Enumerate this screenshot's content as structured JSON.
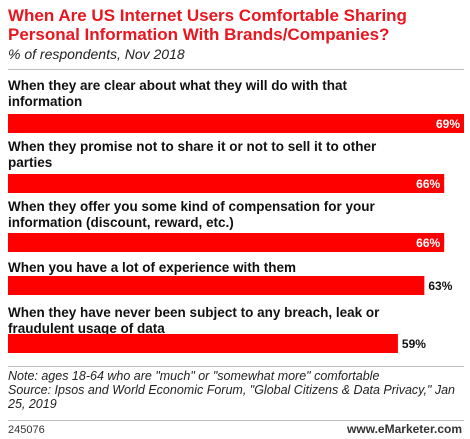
{
  "chart_data": {
    "type": "bar",
    "title": "When Are US Internet Users Comfortable Sharing Personal Information With Brands/Companies?",
    "subtitle": "% of respondents, Nov 2018",
    "categories": [
      [
        "When they are clear about what they will do with that",
        "information"
      ],
      [
        "When they promise not to share it or not to sell it to other",
        "parties"
      ],
      [
        "When they offer you some kind of compensation for your",
        "information (discount, reward, etc.)"
      ],
      [
        "When you have a lot of experience with them"
      ],
      [
        "When they have never been subject to any breach, leak or",
        "fraudulent usage of data"
      ]
    ],
    "values": [
      69,
      66,
      66,
      63,
      59
    ],
    "value_labels": [
      "69%",
      "66%",
      "66%",
      "63%",
      "59%"
    ],
    "xlim": [
      0,
      69
    ],
    "bar_color": "#ff0000"
  },
  "note": "Note: ages 18-64 who are \"much\" or \"somewhat more\" comfortable",
  "source": "Source: Ipsos and World Economic Forum, \"Global Citizens & Data Privacy,\" Jan 25, 2019",
  "chart_id": "245076",
  "brand": {
    "www": "www.",
    "e": "e",
    "name": "Marketer",
    "dotcom": ".com"
  }
}
